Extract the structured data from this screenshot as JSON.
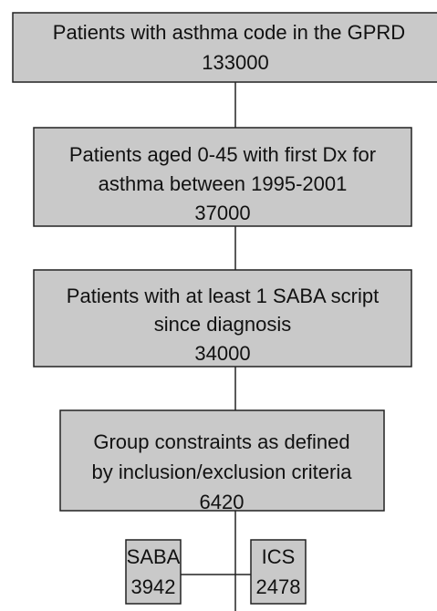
{
  "nodes": [
    {
      "lines": [
        "Patients with asthma code in the GPRD",
        "133000"
      ]
    },
    {
      "lines": [
        "Patients aged 0-45 with first Dx for",
        "asthma between 1995-2001",
        "37000"
      ]
    },
    {
      "lines": [
        "Patients with at least 1 SABA script",
        "since diagnosis",
        "34000"
      ]
    },
    {
      "lines": [
        "Group constraints as defined",
        "by inclusion/exclusion criteria",
        "6420"
      ]
    },
    {
      "lines": [
        "SABA",
        "3942"
      ]
    },
    {
      "lines": [
        "ICS",
        "2478"
      ]
    }
  ]
}
